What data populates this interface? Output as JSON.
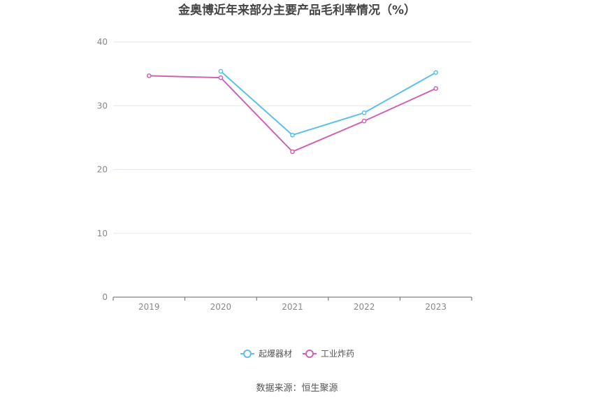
{
  "chart_data": {
    "type": "line",
    "title": "金奥博近年来部分主要产品毛利率情况（%）",
    "xlabel": "",
    "ylabel": "",
    "categories": [
      "2019",
      "2020",
      "2021",
      "2022",
      "2023"
    ],
    "ylim": [
      0,
      40
    ],
    "yticks": [
      "0",
      "10",
      "20",
      "30",
      "40"
    ],
    "grid": true,
    "legend_position": "bottom",
    "series": [
      {
        "name": "起爆器材",
        "color": "#5bc0eb",
        "values": [
          null,
          35.4,
          25.4,
          28.9,
          35.2
        ]
      },
      {
        "name": "工业炸药",
        "color": "#d063b0",
        "values": [
          34.7,
          34.4,
          22.8,
          27.6,
          32.7
        ]
      }
    ]
  },
  "footer": {
    "source": "数据来源：恒生聚源"
  }
}
